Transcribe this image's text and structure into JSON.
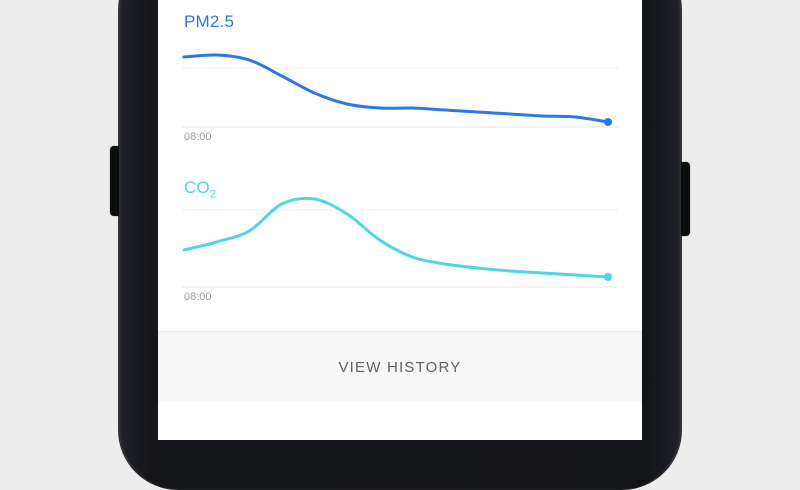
{
  "ui": {
    "view_history_label": "VIEW HISTORY"
  },
  "chart_data": [
    {
      "type": "line",
      "title": "PM2.5",
      "title_sub": "",
      "color": "#2e78e6",
      "xlabel": "",
      "ylabel": "",
      "ylim": [
        0,
        100
      ],
      "grid": "faint horizontal lines, bottom baseline",
      "legend": "none",
      "x_tick_labels": [
        "08:00"
      ],
      "series": [
        {
          "name": "PM2.5",
          "values": [
            70,
            72,
            67,
            51,
            34,
            23,
            19,
            19,
            17,
            15,
            13,
            11,
            10,
            5
          ]
        }
      ]
    },
    {
      "type": "line",
      "title": "CO",
      "title_sub": "2",
      "color": "#4fd5e5",
      "xlabel": "",
      "ylabel": "",
      "ylim": [
        0,
        100
      ],
      "grid": "faint horizontal lines, bottom baseline",
      "legend": "none",
      "x_tick_labels": [
        "08:00"
      ],
      "series": [
        {
          "name": "CO2",
          "values": [
            37,
            45,
            56,
            83,
            88,
            73,
            47,
            30,
            23,
            19,
            16,
            14,
            12,
            10
          ]
        }
      ]
    }
  ]
}
